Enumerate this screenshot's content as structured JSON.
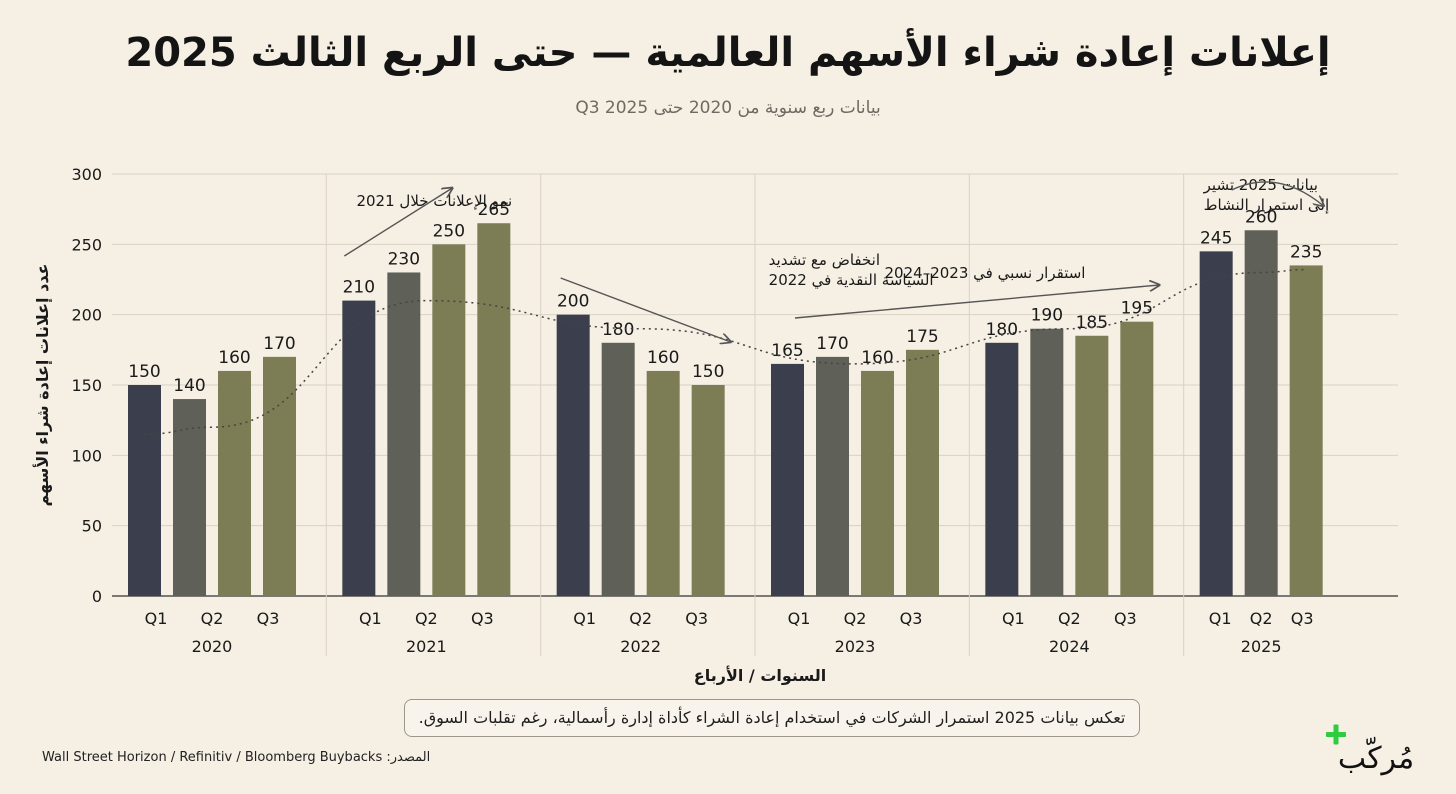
{
  "title": "إعلانات إعادة شراء الأسهم العالمية — حتى الربع الثالث 2025",
  "subtitle": "بيانات ربع سنوية من 2020 حتى Q3 2025",
  "note": "تعكس بيانات 2025 استمرار الشركات في استخدام إعادة الشراء كأداة إدارة رأسمالية، رغم تقلبات السوق.",
  "source": "المصدر: Wall Street Horizon / Refinitiv / Bloomberg Buybacks",
  "logo": {
    "text": "مُركّب",
    "accent_color": "#2ecc40"
  },
  "colors": {
    "q1": "#3b3e4c",
    "q2": "#5f6158",
    "q3": "#7c7c55",
    "background": "#f5efe4"
  },
  "chart_data": {
    "type": "bar",
    "title": "إعلانات إعادة شراء الأسهم العالمية — حتى الربع الثالث 2025",
    "xlabel": "السنوات / الأرباع",
    "ylabel": "عدد إعلانات إعادة شراء الأسهم",
    "ylim": [
      0,
      300
    ],
    "yticks": [
      0,
      50,
      100,
      150,
      200,
      250,
      300
    ],
    "grid": true,
    "groups": [
      {
        "year": "2020",
        "bars": [
          {
            "quarter": "Q1",
            "value": 150
          },
          {
            "quarter": "Q2",
            "value": 140
          },
          {
            "quarter": "Q2",
            "value": 160
          },
          {
            "quarter": "Q3",
            "value": 170
          }
        ]
      },
      {
        "year": "2021",
        "bars": [
          {
            "quarter": "Q1",
            "value": 210
          },
          {
            "quarter": "Q2",
            "value": 230
          },
          {
            "quarter": "Q2",
            "value": 250
          },
          {
            "quarter": "Q3",
            "value": 265
          }
        ]
      },
      {
        "year": "2022",
        "bars": [
          {
            "quarter": "Q1",
            "value": 200
          },
          {
            "quarter": "Q2",
            "value": 180
          },
          {
            "quarter": "Q2",
            "value": 160
          },
          {
            "quarter": "Q3",
            "value": 150
          }
        ]
      },
      {
        "year": "2023",
        "bars": [
          {
            "quarter": "Q1",
            "value": 165
          },
          {
            "quarter": "Q2",
            "value": 170
          },
          {
            "quarter": "Q2",
            "value": 160
          },
          {
            "quarter": "Q3",
            "value": 175
          }
        ]
      },
      {
        "year": "2024",
        "bars": [
          {
            "quarter": "Q1",
            "value": 180
          },
          {
            "quarter": "Q2",
            "value": 190
          },
          {
            "quarter": "Q2",
            "value": 185
          },
          {
            "quarter": "Q3",
            "value": 195
          }
        ]
      },
      {
        "year": "2025",
        "bars": [
          {
            "quarter": "Q1",
            "value": 245
          },
          {
            "quarter": "Q2",
            "value": 260
          },
          {
            "quarter": "Q3",
            "value": 235
          }
        ]
      }
    ],
    "annotations": [
      {
        "text": [
          "نمو الإعلانات خلال 2021"
        ]
      },
      {
        "text": [
          "انخفاض مع تشديد",
          "السياسة النقدية في 2022"
        ]
      },
      {
        "text": [
          "استقرار نسبي في 2023–2024"
        ]
      },
      {
        "text": [
          "بيانات 2025 تشير",
          "إلى استمرار النشاط"
        ]
      }
    ],
    "trendline": [
      120,
      210,
      190,
      165,
      190,
      230
    ]
  }
}
